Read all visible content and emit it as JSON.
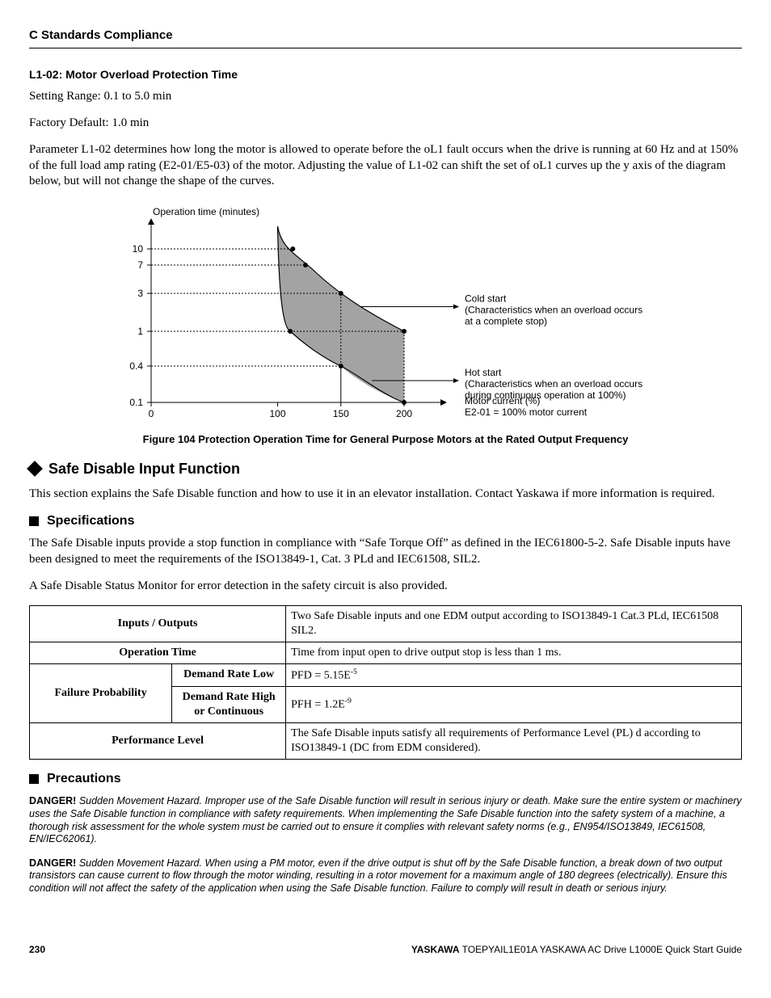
{
  "header": {
    "title": "C  Standards Compliance"
  },
  "sec_l102": {
    "heading": "L1-02:  Motor Overload Protection Time",
    "setting": "Setting Range: 0.1 to 5.0 min",
    "default": "Factory Default: 1.0 min",
    "para": "Parameter L1-02 determines how long the motor is allowed to operate before the oL1 fault occurs when the drive is running at 60 Hz and at 150% of the full load amp rating (E2-01/E5-03) of the motor. Adjusting the value of L1-02 can shift the set of oL1 curves up the y axis of the diagram below, but will not change the shape of the curves."
  },
  "figure": {
    "caption": "Figure 104  Protection Operation Time for General Purpose Motors at the Rated Output Frequency",
    "y_title": "Operation time (minutes)",
    "x_title": "Motor current (%)",
    "x_title2": "E2-01 = 100% motor current",
    "y_ticks": [
      "0.1",
      "0.4",
      "1",
      "3",
      "7",
      "10"
    ],
    "y_tick_positions": [
      0.1,
      0.4,
      1,
      3,
      7,
      10
    ],
    "x_ticks": [
      "0",
      "100",
      "150",
      "200"
    ],
    "x_tick_positions": [
      0,
      100,
      150,
      200
    ],
    "x_range": [
      0,
      230
    ],
    "anno_cold_t": "Cold start",
    "anno_cold_s": "(Characteristics when an overload occurs at a complete stop)",
    "anno_hot_t": "Hot start",
    "anno_hot_s": "(Characteristics when an overload occurs during continuous operation at 100%)",
    "colors": {
      "axis": "#000000",
      "dash": "#000000",
      "shade": "#a3a3a3",
      "bg": "#ffffff"
    }
  },
  "safe_disable": {
    "h2": "Safe Disable Input Function",
    "intro": "This section explains the Safe Disable function and how to use it in an elevator installation. Contact Yaskawa if more information is required.",
    "h3_spec": "Specifications",
    "spec_p1": "The Safe Disable inputs provide a stop function in compliance with “Safe Torque Off” as defined in the IEC61800-5-2. Safe Disable inputs have been designed to meet the requirements of the ISO13849-1, Cat. 3 PLd and IEC61508, SIL2.",
    "spec_p2": "A Safe Disable Status Monitor for error detection in the safety circuit is also provided.",
    "table": {
      "r1_lab": "Inputs / Outputs",
      "r1_val": "Two Safe Disable inputs and one EDM output according to ISO13849-1 Cat.3 PLd, IEC61508 SIL2.",
      "r2_lab": "Operation Time",
      "r2_val": "Time from input open to drive output stop is less than 1 ms.",
      "r3_lab": "Failure Probability",
      "r3a_lab": "Demand Rate Low",
      "r3a_val_prefix": "PFD = 5.15E",
      "r3a_val_exp": "-5",
      "r3b_lab": "Demand Rate High or Continuous",
      "r3b_val_prefix": "PFH = 1.2E",
      "r3b_val_exp": "-9",
      "r4_lab": "Performance Level",
      "r4_val": "The Safe Disable inputs satisfy all requirements of Performance Level (PL) d according to ISO13849-1 (DC from EDM considered)."
    },
    "h3_prec": "Precautions",
    "warn1_b": "DANGER!",
    "warn1": " Sudden Movement Hazard. Improper use of the Safe Disable function will result in serious injury or death. Make sure the entire system or machinery uses the Safe Disable function in compliance with safety requirements. When implementing the Safe Disable function into the safety system of a machine, a thorough risk assessment for the whole system must be carried out to ensure it complies with relevant safety norms (e.g., EN954/ISO13849, IEC61508, EN/IEC62061).",
    "warn2_b": "DANGER!",
    "warn2": " Sudden Movement Hazard. When using a PM motor, even if the drive output is shut off by the Safe Disable function, a break down of two output transistors can cause current to flow through the motor winding, resulting in a rotor movement for a maximum angle of 180 degrees (electrically). Ensure this condition will not affect the safety of the application when using the Safe Disable function. Failure to comply will result in death or serious injury."
  },
  "footer": {
    "page": "230",
    "brand": "YASKAWA",
    "doc": " TOEPYAIL1E01A YASKAWA AC Drive L1000E Quick Start Guide"
  }
}
